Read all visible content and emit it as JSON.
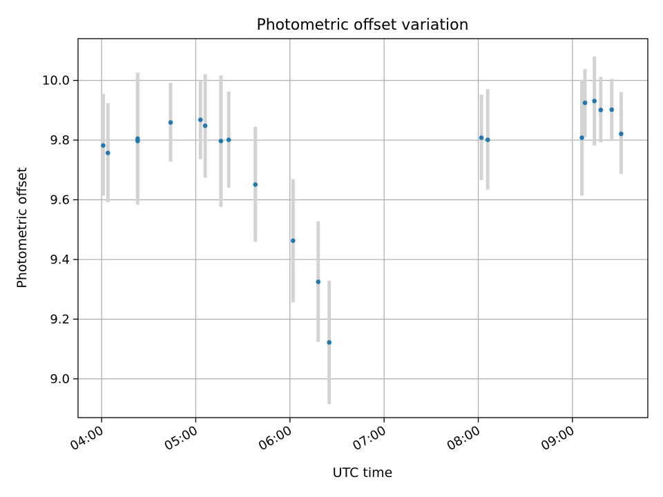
{
  "chart_data": {
    "type": "scatter",
    "title": "Photometric offset variation",
    "xlabel": "UTC time",
    "ylabel": "Photometric offset",
    "xlim_hours": [
      3.75,
      9.8
    ],
    "ylim": [
      8.87,
      10.14
    ],
    "xticks": [
      {
        "value": 4,
        "label": "04:00"
      },
      {
        "value": 5,
        "label": "05:00"
      },
      {
        "value": 6,
        "label": "06:00"
      },
      {
        "value": 7,
        "label": "07:00"
      },
      {
        "value": 8,
        "label": "08:00"
      },
      {
        "value": 9,
        "label": "09:00"
      }
    ],
    "yticks": [
      {
        "value": 9.0,
        "label": "9.0"
      },
      {
        "value": 9.2,
        "label": "9.2"
      },
      {
        "value": 9.4,
        "label": "9.4"
      },
      {
        "value": 9.6,
        "label": "9.6"
      },
      {
        "value": 9.8,
        "label": "9.8"
      },
      {
        "value": 10.0,
        "label": "10.0"
      }
    ],
    "grid": true,
    "colors": {
      "points": "#1f77b4",
      "errorbars": "#d3d3d3",
      "grid": "#b0b0b0",
      "axes": "#000000"
    },
    "series": [
      {
        "name": "Photometric offset",
        "points": [
          {
            "x": 4.017,
            "y": 9.782,
            "ylow": 9.614,
            "yhigh": 9.955
          },
          {
            "x": 4.067,
            "y": 9.757,
            "ylow": 9.592,
            "yhigh": 9.924
          },
          {
            "x": 4.383,
            "y": 9.805,
            "ylow": 9.584,
            "yhigh": 10.026
          },
          {
            "x": 4.383,
            "y": 9.797,
            "ylow": 9.584,
            "yhigh": 10.026
          },
          {
            "x": 4.733,
            "y": 9.859,
            "ylow": 9.728,
            "yhigh": 9.992
          },
          {
            "x": 5.05,
            "y": 9.868,
            "ylow": 9.736,
            "yhigh": 9.998
          },
          {
            "x": 5.1,
            "y": 9.848,
            "ylow": 9.674,
            "yhigh": 10.021
          },
          {
            "x": 5.267,
            "y": 9.797,
            "ylow": 9.576,
            "yhigh": 10.017
          },
          {
            "x": 5.35,
            "y": 9.801,
            "ylow": 9.64,
            "yhigh": 9.963
          },
          {
            "x": 5.633,
            "y": 9.651,
            "ylow": 9.459,
            "yhigh": 9.845
          },
          {
            "x": 6.033,
            "y": 9.463,
            "ylow": 9.257,
            "yhigh": 9.669
          },
          {
            "x": 6.3,
            "y": 9.325,
            "ylow": 9.124,
            "yhigh": 9.528
          },
          {
            "x": 6.417,
            "y": 9.122,
            "ylow": 8.915,
            "yhigh": 9.329
          },
          {
            "x": 8.033,
            "y": 9.808,
            "ylow": 9.666,
            "yhigh": 9.952
          },
          {
            "x": 8.1,
            "y": 9.801,
            "ylow": 9.634,
            "yhigh": 9.971
          },
          {
            "x": 9.1,
            "y": 9.808,
            "ylow": 9.614,
            "yhigh": 10.002
          },
          {
            "x": 9.133,
            "y": 9.925,
            "ylow": 9.81,
            "yhigh": 10.038
          },
          {
            "x": 9.233,
            "y": 9.931,
            "ylow": 9.782,
            "yhigh": 10.08
          },
          {
            "x": 9.3,
            "y": 9.901,
            "ylow": 9.792,
            "yhigh": 10.012
          },
          {
            "x": 9.417,
            "y": 9.902,
            "ylow": 9.797,
            "yhigh": 10.005
          },
          {
            "x": 9.517,
            "y": 9.821,
            "ylow": 9.687,
            "yhigh": 9.961
          }
        ]
      }
    ]
  }
}
